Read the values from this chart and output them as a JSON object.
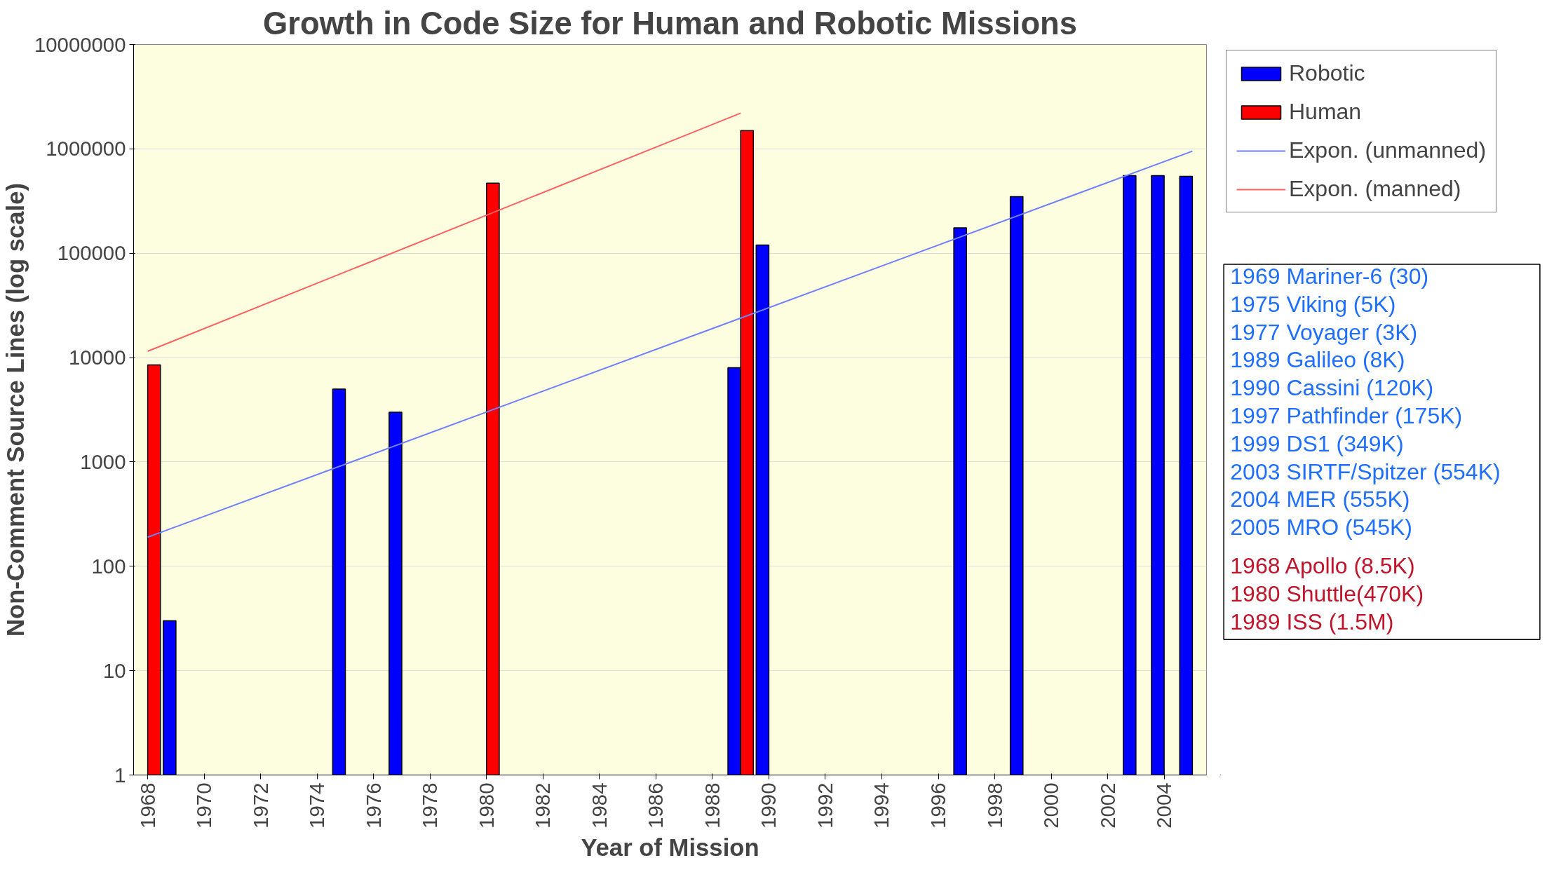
{
  "chart_data": {
    "type": "bar",
    "title": "Growth in Code Size for Human and Robotic Missions",
    "xlabel": "Year of Mission",
    "ylabel": "Non-Comment Source Lines (log scale)",
    "log": "y",
    "grid": "y",
    "legend": "right",
    "xlim": [
      1967.5,
      2005.5
    ],
    "xticks": [
      1968,
      1970,
      1972,
      1974,
      1976,
      1978,
      1980,
      1982,
      1984,
      1986,
      1988,
      1990,
      1992,
      1994,
      1996,
      1998,
      2000,
      2002,
      2004
    ],
    "ylim": [
      1,
      10000000
    ],
    "yticks": [
      1,
      10,
      100,
      1000,
      10000,
      100000,
      1000000,
      10000000
    ],
    "series": [
      {
        "name": "Robotic",
        "color": "#0000ff",
        "x": [
          1969,
          1975,
          1977,
          1989,
          1990,
          1997,
          1999,
          2003,
          2004,
          2005
        ],
        "values": [
          30,
          5000,
          3000,
          8000,
          120000,
          175000,
          349000,
          554000,
          555000,
          545000
        ]
      },
      {
        "name": "Human",
        "color": "#ff0000",
        "x": [
          1968,
          1980,
          1989
        ],
        "values": [
          8500,
          470000,
          1500000
        ]
      },
      {
        "name": "Expon. (unmanned)",
        "type": "line",
        "color": "#6f7fff",
        "x": [
          1968,
          2005
        ],
        "values": [
          190,
          950000
        ]
      },
      {
        "name": "Expon. (manned)",
        "type": "line",
        "color": "#ff6060",
        "x": [
          1968,
          1989
        ],
        "values": [
          11500,
          2200000
        ]
      }
    ],
    "annotations": [
      "1969 Mariner-6  (30)",
      "1975 Viking  (5K)",
      "1977 Voyager (3K)",
      "1989 Galileo  (8K)",
      "1990 Cassini  (120K)",
      "1997 Pathfinder (175K)",
      "1999 DS1 (349K)",
      "2003 SIRTF/Spitzer  (554K)",
      "2004 MER (555K)",
      "2005 MRO  (545K)",
      "1968 Apollo (8.5K)",
      "1980 Shuttle(470K)",
      "1989 ISS (1.5M)"
    ]
  }
}
